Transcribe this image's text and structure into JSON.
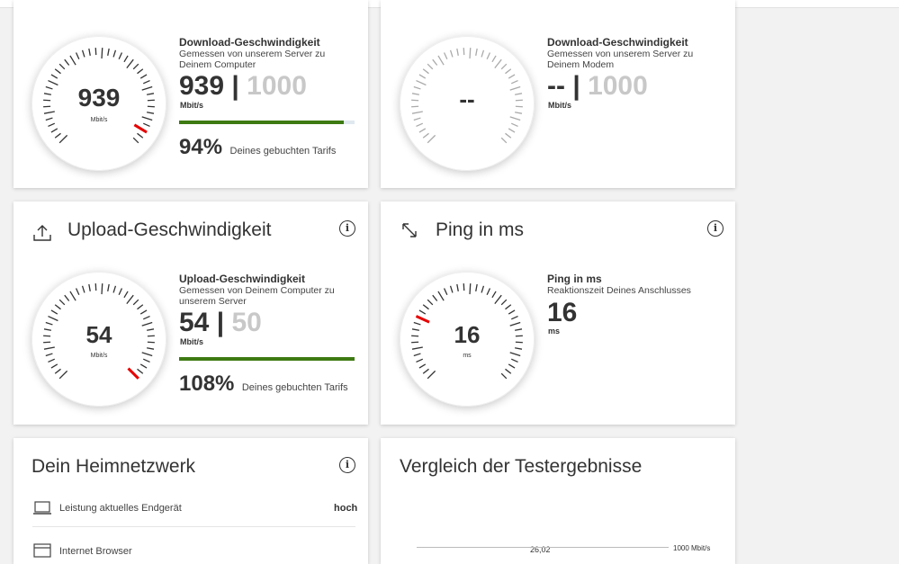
{
  "download_local": {
    "gauge_value": "939",
    "gauge_unit": "Mbit/s",
    "title": "Download-Geschwindigkeit",
    "subtitle": "Gemessen von unserem Server zu Deinem Computer",
    "value": "939",
    "max": "1000",
    "unit": "Mbit/s",
    "bar_fraction": 0.94,
    "percent": "94%",
    "percent_label": "Deines gebuchten Tarifs"
  },
  "download_modem": {
    "gauge_value": "--",
    "title": "Download-Geschwindigkeit",
    "subtitle": "Gemessen von unserem Server zu Deinem Modem",
    "value": "--",
    "max": "1000",
    "unit": "Mbit/s"
  },
  "upload": {
    "card_title": "Upload-Geschwindigkeit",
    "gauge_value": "54",
    "gauge_unit": "Mbit/s",
    "title": "Upload-Geschwindigkeit",
    "subtitle": "Gemessen von Deinem Computer zu unserem Server",
    "value": "54",
    "max": "50",
    "unit": "Mbit/s",
    "bar_fraction": 1.0,
    "percent": "108%",
    "percent_label": "Deines gebuchten Tarifs"
  },
  "ping": {
    "card_title": "Ping in ms",
    "gauge_value": "16",
    "gauge_unit": "ms",
    "title": "Ping in ms",
    "subtitle": "Reaktionszeit Deines Anschlusses",
    "value": "16",
    "unit": "ms"
  },
  "home_network": {
    "card_title": "Dein Heimnetzwerk",
    "rows": [
      {
        "label": "Leistung aktuelles Endgerät",
        "value": "hoch"
      },
      {
        "label": "Internet Browser",
        "value": ""
      }
    ]
  },
  "comparison": {
    "card_title": "Vergleich der Testergebnisse",
    "marker_label": "26,02",
    "max_label": "1000 Mbit/s"
  },
  "colors": {
    "accent": "#e60000",
    "progress": "#3d7a12",
    "muted": "#c8c8c8"
  }
}
